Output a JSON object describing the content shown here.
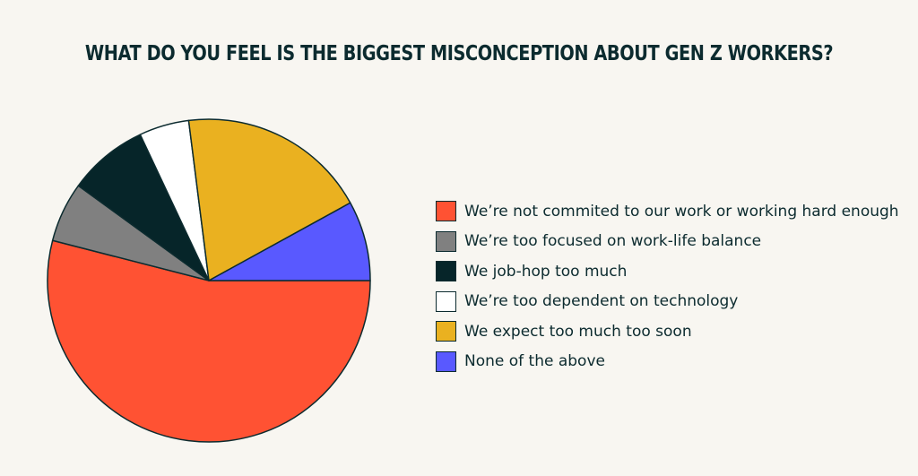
{
  "chart_data": {
    "type": "pie",
    "title": "WHAT DO YOU FEEL IS THE BIGGEST MISCONCEPTION ABOUT GEN Z WORKERS?",
    "legend_position": "right",
    "slices": [
      {
        "label": "We’re not commited to our work or working hard enough",
        "value": 54,
        "color": "#ff5233"
      },
      {
        "label": "We’re too focused on work-life balance",
        "value": 6,
        "color": "#808080"
      },
      {
        "label": "We job-hop too much",
        "value": 8,
        "color": "#062529"
      },
      {
        "label": "We’re too dependent on technology",
        "value": 5,
        "color": "#ffffff"
      },
      {
        "label": "We expect too much too soon",
        "value": 19,
        "color": "#eab120"
      },
      {
        "label": "None of the above",
        "value": 8,
        "color": "#5959ff"
      }
    ]
  }
}
